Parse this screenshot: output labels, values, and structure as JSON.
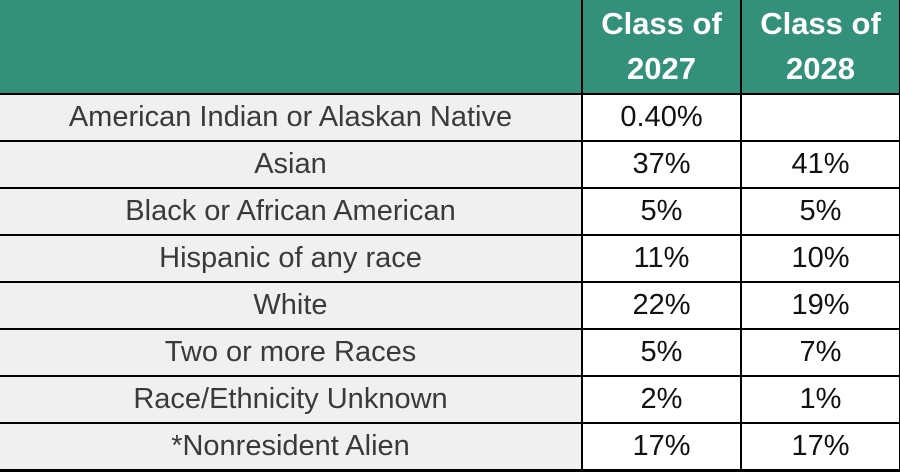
{
  "colors": {
    "header_bg": "#33907A",
    "header_text": "#FFFFFF",
    "label_cell_bg": "#F0F0F0",
    "value_cell_bg": "#FFFFFF",
    "grid_border": "#000000",
    "body_text": "#3A3A3A"
  },
  "header": {
    "corner_label": "",
    "col_2027_label": "Class of 2027",
    "col_2028_label": "Class of 2028"
  },
  "chart_data": {
    "type": "table",
    "title": "",
    "columns": [
      "",
      "Class of 2027",
      "Class of 2028"
    ],
    "rows": [
      {
        "label": "American Indian or Alaskan Native",
        "class_of_2027": "0.40%",
        "class_of_2028": ""
      },
      {
        "label": "Asian",
        "class_of_2027": "37%",
        "class_of_2028": "41%"
      },
      {
        "label": "Black or African American",
        "class_of_2027": "5%",
        "class_of_2028": "5%"
      },
      {
        "label": "Hispanic of any race",
        "class_of_2027": "11%",
        "class_of_2028": "10%"
      },
      {
        "label": "White",
        "class_of_2027": "22%",
        "class_of_2028": "19%"
      },
      {
        "label": "Two or more Races",
        "class_of_2027": "5%",
        "class_of_2028": "7%"
      },
      {
        "label": "Race/Ethnicity Unknown",
        "class_of_2027": "2%",
        "class_of_2028": "1%"
      },
      {
        "label": "*Nonresident Alien",
        "class_of_2027": "17%",
        "class_of_2028": "17%"
      }
    ]
  }
}
